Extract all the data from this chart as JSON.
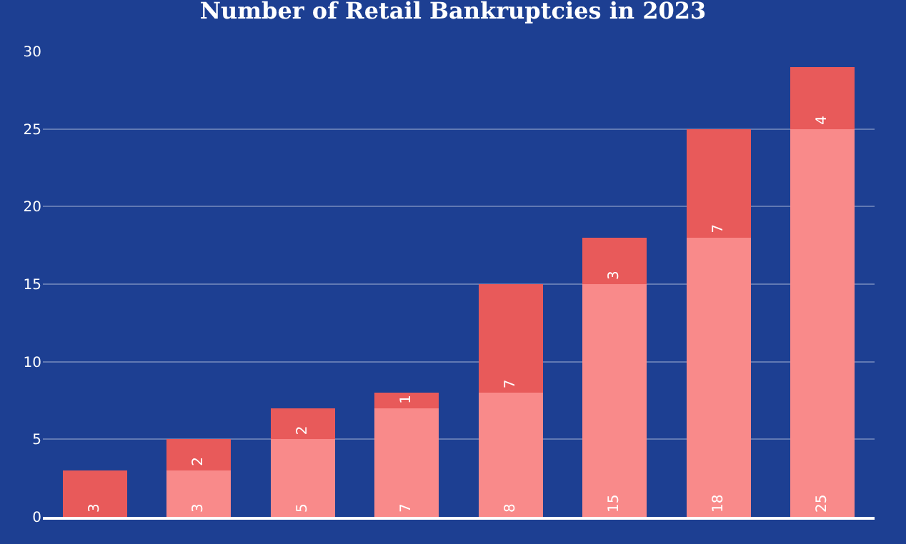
{
  "chart_data": {
    "type": "bar",
    "title": "Number of Retail Bankruptcies in 2023",
    "categories": [
      null,
      null,
      null,
      null,
      null,
      null,
      null,
      null
    ],
    "stacked": true,
    "data_labels": true,
    "grid": "y",
    "legend": false,
    "ylim": [
      0,
      30
    ],
    "yticks": [
      0,
      5,
      10,
      15,
      20,
      25,
      30
    ],
    "series": [
      {
        "color": "#f98a8a",
        "values": [
          null,
          3,
          5,
          7,
          8,
          15,
          18,
          25
        ]
      },
      {
        "color": "#e85a5a",
        "values": [
          3,
          2,
          2,
          1,
          7,
          3,
          7,
          4
        ]
      }
    ]
  }
}
